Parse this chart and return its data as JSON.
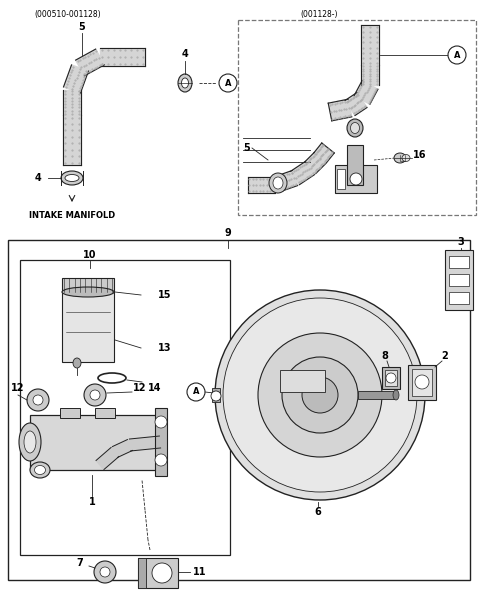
{
  "bg_color": "#ffffff",
  "line_color": "#222222",
  "text_color": "#000000",
  "top_left_label": "(000510-001128)",
  "top_right_label": "(001128-)",
  "bottom_label": "INTAKE MANIFOLD"
}
